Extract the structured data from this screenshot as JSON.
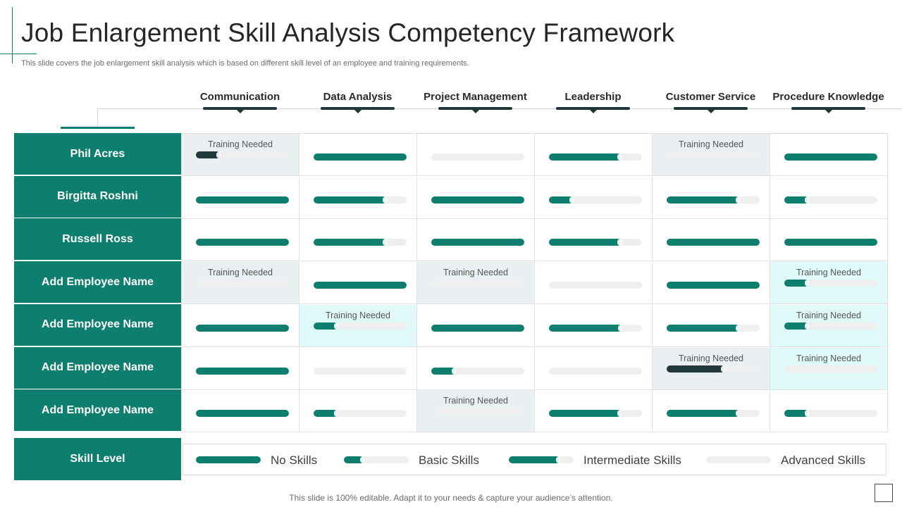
{
  "title": "Job Enlargement Skill Analysis Competency Framework",
  "subtitle": "This slide covers the job enlargement skill analysis which is based on different skill level of an employee and training requirements.",
  "columns": [
    "Communication",
    "Data Analysis",
    "Project Management",
    "Leadership",
    "Customer Service",
    "Procedure Knowledge"
  ],
  "training_label": "Training  Needed",
  "colors": {
    "primary": "#0e7f6f",
    "dark": "#21383a",
    "track": "#efefef",
    "highlight_grey": "#eaf0f1",
    "highlight_cyan": "#dffaf8"
  },
  "rows": [
    {
      "name": "Phil Acres",
      "cells": [
        {
          "level": 0.26,
          "training": true,
          "bg": "grey",
          "color": "dark"
        },
        {
          "level": 1.0
        },
        {
          "level": 0.0
        },
        {
          "level": 0.77
        },
        {
          "level": 0.0,
          "training": true,
          "bg": "grey"
        },
        {
          "level": 1.0
        }
      ]
    },
    {
      "name": "Birgitta Roshni",
      "cells": [
        {
          "level": 1.0
        },
        {
          "level": 0.78
        },
        {
          "level": 1.0
        },
        {
          "level": 0.26
        },
        {
          "level": 0.78
        },
        {
          "level": 0.26
        }
      ]
    },
    {
      "name": "Russell Ross",
      "cells": [
        {
          "level": 1.0
        },
        {
          "level": 0.78
        },
        {
          "level": 1.0
        },
        {
          "level": 0.77
        },
        {
          "level": 1.0
        },
        {
          "level": 1.0
        }
      ]
    },
    {
      "name": "Add Employee Name",
      "cells": [
        {
          "level": 0.0,
          "training": true,
          "bg": "grey"
        },
        {
          "level": 1.0
        },
        {
          "level": 0.0,
          "training": true,
          "bg": "grey"
        },
        {
          "level": 0.0
        },
        {
          "level": 1.0
        },
        {
          "level": 0.26,
          "training": true,
          "bg": "cyan"
        }
      ]
    },
    {
      "name": "Add Employee Name",
      "cells": [
        {
          "level": 1.0
        },
        {
          "level": 0.26,
          "training": true,
          "bg": "cyan"
        },
        {
          "level": 1.0
        },
        {
          "level": 0.78
        },
        {
          "level": 0.78
        },
        {
          "level": 0.26,
          "training": true,
          "bg": "cyan"
        }
      ]
    },
    {
      "name": "Add Employee Name",
      "cells": [
        {
          "level": 1.0
        },
        {
          "level": 0.0
        },
        {
          "level": 0.26
        },
        {
          "level": 0.0
        },
        {
          "level": 0.62,
          "training": true,
          "bg": "grey",
          "color": "dark"
        },
        {
          "level": 0.0,
          "training": true,
          "bg": "cyan"
        }
      ]
    },
    {
      "name": "Add Employee Name",
      "cells": [
        {
          "level": 1.0
        },
        {
          "level": 0.26
        },
        {
          "level": 0.0,
          "training": true,
          "bg": "grey"
        },
        {
          "level": 0.77
        },
        {
          "level": 0.78
        },
        {
          "level": 0.26
        }
      ]
    }
  ],
  "legend": {
    "title": "Skill Level",
    "items": [
      {
        "label": "No Skills",
        "level": 1.0
      },
      {
        "label": "Basic Skills",
        "level": 0.3
      },
      {
        "label": "Intermediate Skills",
        "level": 0.78
      },
      {
        "label": "Advanced Skills",
        "level": 0.0
      }
    ]
  },
  "footer": "This slide is 100% editable. Adapt it to your needs & capture your audience’s attention."
}
